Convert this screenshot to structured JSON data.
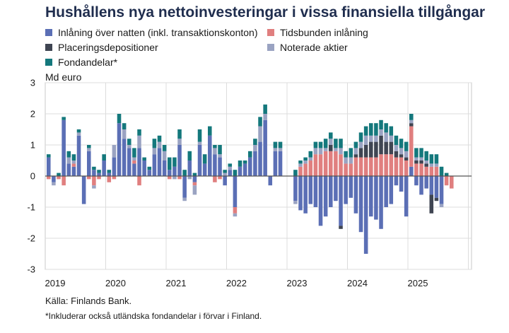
{
  "title": "Hushållens nya nettoinvesteringar i vissa finansiella tillgångar",
  "unit_label": "Md euro",
  "source": "Källa: Finlands Bank.",
  "footnote": "*Inkluderar också utländska fondandelar i förvar i Finland.",
  "chart_data": {
    "type": "bar",
    "stacked": true,
    "ylim": [
      -3,
      3
    ],
    "y_ticks": [
      3,
      2,
      1,
      0,
      -1,
      -2,
      -3
    ],
    "x_start_label": "2019",
    "x_ticks": [
      "2019",
      "2020",
      "2021",
      "2022",
      "2023",
      "2024",
      "2025"
    ],
    "x_range_years": [
      2019,
      2026
    ],
    "months_per_bar": 1,
    "grid": true,
    "legend": "top",
    "series": [
      {
        "name": "Inlåning över natten (inkl. transaktionskonton)",
        "color": "#5b6fb5",
        "values": [
          0.6,
          -0.2,
          0.0,
          1.8,
          0.4,
          0.3,
          1.3,
          -0.9,
          0.8,
          0.2,
          0.1,
          0.5,
          0.1,
          0.6,
          1.7,
          1.2,
          0.9,
          0.4,
          0.9,
          0.5,
          0.2,
          0.7,
          0.9,
          0.5,
          0.2,
          0.3,
          1.0,
          -0.7,
          0.5,
          -0.2,
          1.0,
          0.4,
          1.3,
          0.7,
          0.6,
          -0.3,
          0.2,
          -1.0,
          0.3,
          0.4,
          0.6,
          0.8,
          1.1,
          1.8,
          -0.3,
          0.8,
          0.8,
          0.0,
          0.0,
          -0.8,
          -1.1,
          -1.2,
          -0.9,
          -1.0,
          -1.6,
          -1.3,
          -1.0,
          -0.8,
          -1.6,
          -0.9,
          -0.7,
          -1.2,
          -1.8,
          -2.5,
          -1.3,
          -1.4,
          -1.7,
          -1.0,
          -0.9,
          -0.3,
          -0.5,
          -1.3,
          0.3,
          -0.3,
          -0.6,
          -0.4,
          -0.6,
          -0.7,
          -0.9,
          0.0,
          0.0
        ]
      },
      {
        "name": "Tidsbunden inlåning",
        "color": "#e07f7f",
        "values": [
          -0.1,
          0.0,
          -0.1,
          -0.3,
          0.0,
          0.1,
          0.0,
          0.0,
          -0.1,
          -0.3,
          -0.1,
          0.0,
          -0.2,
          -0.1,
          0.0,
          0.0,
          0.0,
          0.1,
          -0.3,
          0.0,
          0.0,
          0.0,
          0.0,
          0.0,
          -0.1,
          0.0,
          -0.1,
          0.0,
          0.0,
          -0.1,
          0.0,
          0.0,
          0.0,
          -0.2,
          -0.1,
          0.0,
          0.0,
          -0.2,
          0.0,
          0.0,
          0.0,
          0.0,
          0.0,
          0.0,
          0.0,
          0.0,
          0.0,
          0.0,
          0.0,
          0.0,
          0.3,
          0.4,
          0.5,
          0.7,
          0.7,
          0.8,
          0.8,
          0.8,
          0.7,
          0.4,
          0.4,
          0.6,
          0.6,
          0.6,
          0.6,
          0.6,
          0.7,
          0.7,
          0.7,
          0.6,
          0.6,
          0.5,
          1.3,
          0.4,
          0.4,
          0.3,
          0.3,
          0.3,
          0.0,
          -0.3,
          -0.4
        ]
      },
      {
        "name": "Placeringsdepositioner",
        "color": "#3f4552",
        "values": [
          0.0,
          0.0,
          0.0,
          0.0,
          0.0,
          0.0,
          0.0,
          0.0,
          0.0,
          0.0,
          0.0,
          0.0,
          0.0,
          0.0,
          0.0,
          0.0,
          0.0,
          0.0,
          0.0,
          0.0,
          0.0,
          0.0,
          0.0,
          0.0,
          0.0,
          0.0,
          0.0,
          0.0,
          0.0,
          0.0,
          0.0,
          0.0,
          0.0,
          0.0,
          0.0,
          0.0,
          0.0,
          0.0,
          0.0,
          0.0,
          0.0,
          0.0,
          0.0,
          0.0,
          0.0,
          0.0,
          0.0,
          0.0,
          0.0,
          0.0,
          0.0,
          0.0,
          0.0,
          0.0,
          0.0,
          0.0,
          0.2,
          0.0,
          -0.1,
          0.0,
          0.0,
          0.1,
          0.3,
          0.4,
          0.5,
          0.5,
          0.6,
          0.4,
          0.4,
          0.2,
          0.1,
          0.1,
          0.1,
          0.1,
          0.1,
          0.1,
          -0.6,
          -0.1,
          0.0,
          0.0,
          0.0
        ]
      },
      {
        "name": "Noterade aktier",
        "color": "#9aa3c2",
        "values": [
          0.0,
          -0.1,
          0.0,
          0.0,
          0.2,
          0.1,
          0.1,
          0.0,
          0.1,
          -0.1,
          0.0,
          0.0,
          0.0,
          0.4,
          0.0,
          0.3,
          0.1,
          0.1,
          0.4,
          0.0,
          0.0,
          0.2,
          0.2,
          0.3,
          0.0,
          -0.1,
          0.2,
          -0.1,
          -0.1,
          -0.3,
          0.1,
          0.0,
          0.0,
          0.2,
          0.1,
          0.1,
          0.1,
          -0.1,
          0.0,
          0.0,
          0.0,
          0.2,
          0.5,
          0.2,
          0.0,
          0.1,
          0.1,
          0.0,
          0.0,
          -0.1,
          0.1,
          0.1,
          0.1,
          0.2,
          0.2,
          0.1,
          0.2,
          0.1,
          0.2,
          0.2,
          0.2,
          0.2,
          0.2,
          0.3,
          0.2,
          0.2,
          0.2,
          0.3,
          0.2,
          0.2,
          0.2,
          0.2,
          0.1,
          0.1,
          0.1,
          0.1,
          0.1,
          0.1,
          -0.1,
          0.0,
          0.0
        ]
      },
      {
        "name": "Fondandelar*",
        "color": "#14787c",
        "values": [
          0.1,
          0.0,
          0.1,
          0.1,
          0.2,
          0.2,
          0.1,
          0.0,
          0.1,
          0.1,
          0.1,
          0.2,
          0.1,
          0.0,
          0.3,
          0.2,
          0.2,
          0.3,
          0.2,
          0.1,
          0.1,
          0.3,
          0.2,
          0.2,
          0.4,
          0.3,
          0.3,
          0.2,
          0.3,
          0.1,
          0.4,
          0.3,
          0.3,
          0.1,
          0.3,
          0.1,
          0.1,
          0.2,
          0.2,
          0.1,
          0.2,
          0.2,
          0.3,
          0.3,
          0.0,
          0.2,
          0.2,
          0.0,
          0.0,
          0.2,
          0.1,
          0.1,
          0.2,
          0.2,
          0.2,
          0.3,
          0.2,
          0.3,
          0.3,
          0.2,
          0.3,
          0.2,
          0.3,
          0.3,
          0.4,
          0.4,
          0.3,
          0.3,
          0.3,
          0.3,
          0.3,
          0.3,
          0.2,
          0.3,
          0.3,
          0.3,
          0.3,
          0.3,
          0.3,
          0.1,
          0.0
        ]
      }
    ]
  }
}
